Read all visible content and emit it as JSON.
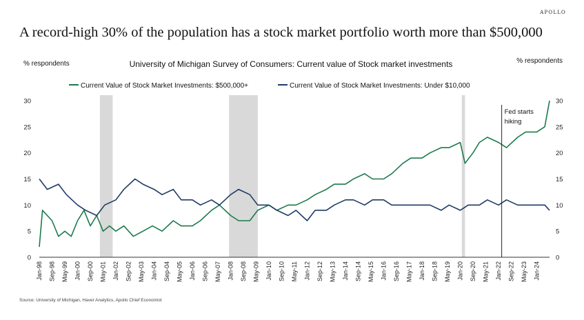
{
  "brand": "APOLLO",
  "headline": "A record-high 30% of the population has a stock market portfolio worth more than $500,000",
  "source": "Source: University of Michigan, Haver Analytics, Apollo Chief Economist",
  "chart_data": {
    "type": "line",
    "title": "University of Michigan Survey of Consumers: Current value of Stock market investments",
    "ylabel_left": "% respondents",
    "ylabel_right": "% respondents",
    "ylim": [
      0,
      30
    ],
    "yticks": [
      0,
      5,
      10,
      15,
      20,
      25,
      30
    ],
    "xlim": [
      "1998-01",
      "2024-09"
    ],
    "xticks": [
      "Jan-98",
      "Sep-98",
      "May-99",
      "Jan-00",
      "Sep-00",
      "May-01",
      "Jan-02",
      "Sep-02",
      "May-03",
      "Jan-04",
      "Sep-04",
      "May-05",
      "Jan-06",
      "Sep-06",
      "May-07",
      "Jan-08",
      "Sep-08",
      "May-09",
      "Jan-10",
      "Sep-10",
      "May-11",
      "Jan-12",
      "Sep-12",
      "May-13",
      "Jan-14",
      "Sep-14",
      "May-15",
      "Jan-16",
      "Sep-16",
      "May-17",
      "Jan-18",
      "Sep-18",
      "May-19",
      "Jan-20",
      "Sep-20",
      "May-21",
      "Jan-22",
      "Sep-22",
      "May-23",
      "Jan-24"
    ],
    "recessions": [
      [
        "2001-03",
        "2001-11"
      ],
      [
        "2007-12",
        "2009-06"
      ],
      [
        "2020-02",
        "2020-04"
      ]
    ],
    "annotation": {
      "date": "2022-03",
      "line1": "Fed starts",
      "line2": "hiking"
    },
    "grid": false,
    "legend_position": "top",
    "series": [
      {
        "name": "Current Value of Stock Market Investments: $500,000+",
        "color": "#1a7a4c",
        "points": [
          [
            "1998-01",
            2
          ],
          [
            "1998-03",
            9
          ],
          [
            "1998-09",
            7
          ],
          [
            "1999-01",
            4
          ],
          [
            "1999-05",
            5
          ],
          [
            "1999-09",
            4
          ],
          [
            "2000-01",
            7
          ],
          [
            "2000-05",
            9
          ],
          [
            "2000-09",
            6
          ],
          [
            "2001-01",
            8
          ],
          [
            "2001-05",
            5
          ],
          [
            "2001-09",
            6
          ],
          [
            "2002-01",
            5
          ],
          [
            "2002-06",
            6
          ],
          [
            "2002-12",
            4
          ],
          [
            "2003-06",
            5
          ],
          [
            "2003-12",
            6
          ],
          [
            "2004-06",
            5
          ],
          [
            "2005-01",
            7
          ],
          [
            "2005-06",
            6
          ],
          [
            "2006-01",
            6
          ],
          [
            "2006-06",
            7
          ],
          [
            "2007-01",
            9
          ],
          [
            "2007-06",
            10
          ],
          [
            "2008-01",
            8
          ],
          [
            "2008-06",
            7
          ],
          [
            "2009-01",
            7
          ],
          [
            "2009-06",
            9
          ],
          [
            "2010-01",
            10
          ],
          [
            "2010-06",
            9
          ],
          [
            "2011-01",
            10
          ],
          [
            "2011-06",
            10
          ],
          [
            "2012-01",
            11
          ],
          [
            "2012-06",
            12
          ],
          [
            "2013-01",
            13
          ],
          [
            "2013-06",
            14
          ],
          [
            "2014-01",
            14
          ],
          [
            "2014-06",
            15
          ],
          [
            "2015-01",
            16
          ],
          [
            "2015-06",
            15
          ],
          [
            "2016-01",
            15
          ],
          [
            "2016-06",
            16
          ],
          [
            "2017-01",
            18
          ],
          [
            "2017-06",
            19
          ],
          [
            "2018-01",
            19
          ],
          [
            "2018-06",
            20
          ],
          [
            "2019-01",
            21
          ],
          [
            "2019-06",
            21
          ],
          [
            "2020-01",
            22
          ],
          [
            "2020-04",
            18
          ],
          [
            "2020-09",
            20
          ],
          [
            "2021-01",
            22
          ],
          [
            "2021-06",
            23
          ],
          [
            "2022-01",
            22
          ],
          [
            "2022-06",
            21
          ],
          [
            "2023-01",
            23
          ],
          [
            "2023-06",
            24
          ],
          [
            "2024-01",
            24
          ],
          [
            "2024-06",
            25
          ],
          [
            "2024-09",
            30
          ]
        ]
      },
      {
        "name": "Current Value of Stock Market Investments: Under $10,000",
        "color": "#1f3a64",
        "points": [
          [
            "1998-01",
            15
          ],
          [
            "1998-06",
            13
          ],
          [
            "1999-01",
            14
          ],
          [
            "1999-06",
            12
          ],
          [
            "2000-01",
            10
          ],
          [
            "2000-06",
            9
          ],
          [
            "2001-01",
            8
          ],
          [
            "2001-06",
            10
          ],
          [
            "2002-01",
            11
          ],
          [
            "2002-06",
            13
          ],
          [
            "2003-01",
            15
          ],
          [
            "2003-06",
            14
          ],
          [
            "2004-01",
            13
          ],
          [
            "2004-06",
            12
          ],
          [
            "2005-01",
            13
          ],
          [
            "2005-06",
            11
          ],
          [
            "2006-01",
            11
          ],
          [
            "2006-06",
            10
          ],
          [
            "2007-01",
            11
          ],
          [
            "2007-06",
            10
          ],
          [
            "2008-01",
            12
          ],
          [
            "2008-06",
            13
          ],
          [
            "2009-01",
            12
          ],
          [
            "2009-06",
            10
          ],
          [
            "2010-01",
            10
          ],
          [
            "2010-06",
            9
          ],
          [
            "2011-01",
            8
          ],
          [
            "2011-06",
            9
          ],
          [
            "2012-01",
            7
          ],
          [
            "2012-06",
            9
          ],
          [
            "2013-01",
            9
          ],
          [
            "2013-06",
            10
          ],
          [
            "2014-01",
            11
          ],
          [
            "2014-06",
            11
          ],
          [
            "2015-01",
            10
          ],
          [
            "2015-06",
            11
          ],
          [
            "2016-01",
            11
          ],
          [
            "2016-06",
            10
          ],
          [
            "2017-01",
            10
          ],
          [
            "2017-06",
            10
          ],
          [
            "2018-01",
            10
          ],
          [
            "2018-06",
            10
          ],
          [
            "2019-01",
            9
          ],
          [
            "2019-06",
            10
          ],
          [
            "2020-01",
            9
          ],
          [
            "2020-06",
            10
          ],
          [
            "2021-01",
            10
          ],
          [
            "2021-06",
            11
          ],
          [
            "2022-01",
            10
          ],
          [
            "2022-06",
            11
          ],
          [
            "2023-01",
            10
          ],
          [
            "2023-06",
            10
          ],
          [
            "2024-01",
            10
          ],
          [
            "2024-06",
            10
          ],
          [
            "2024-09",
            9
          ]
        ]
      }
    ]
  }
}
